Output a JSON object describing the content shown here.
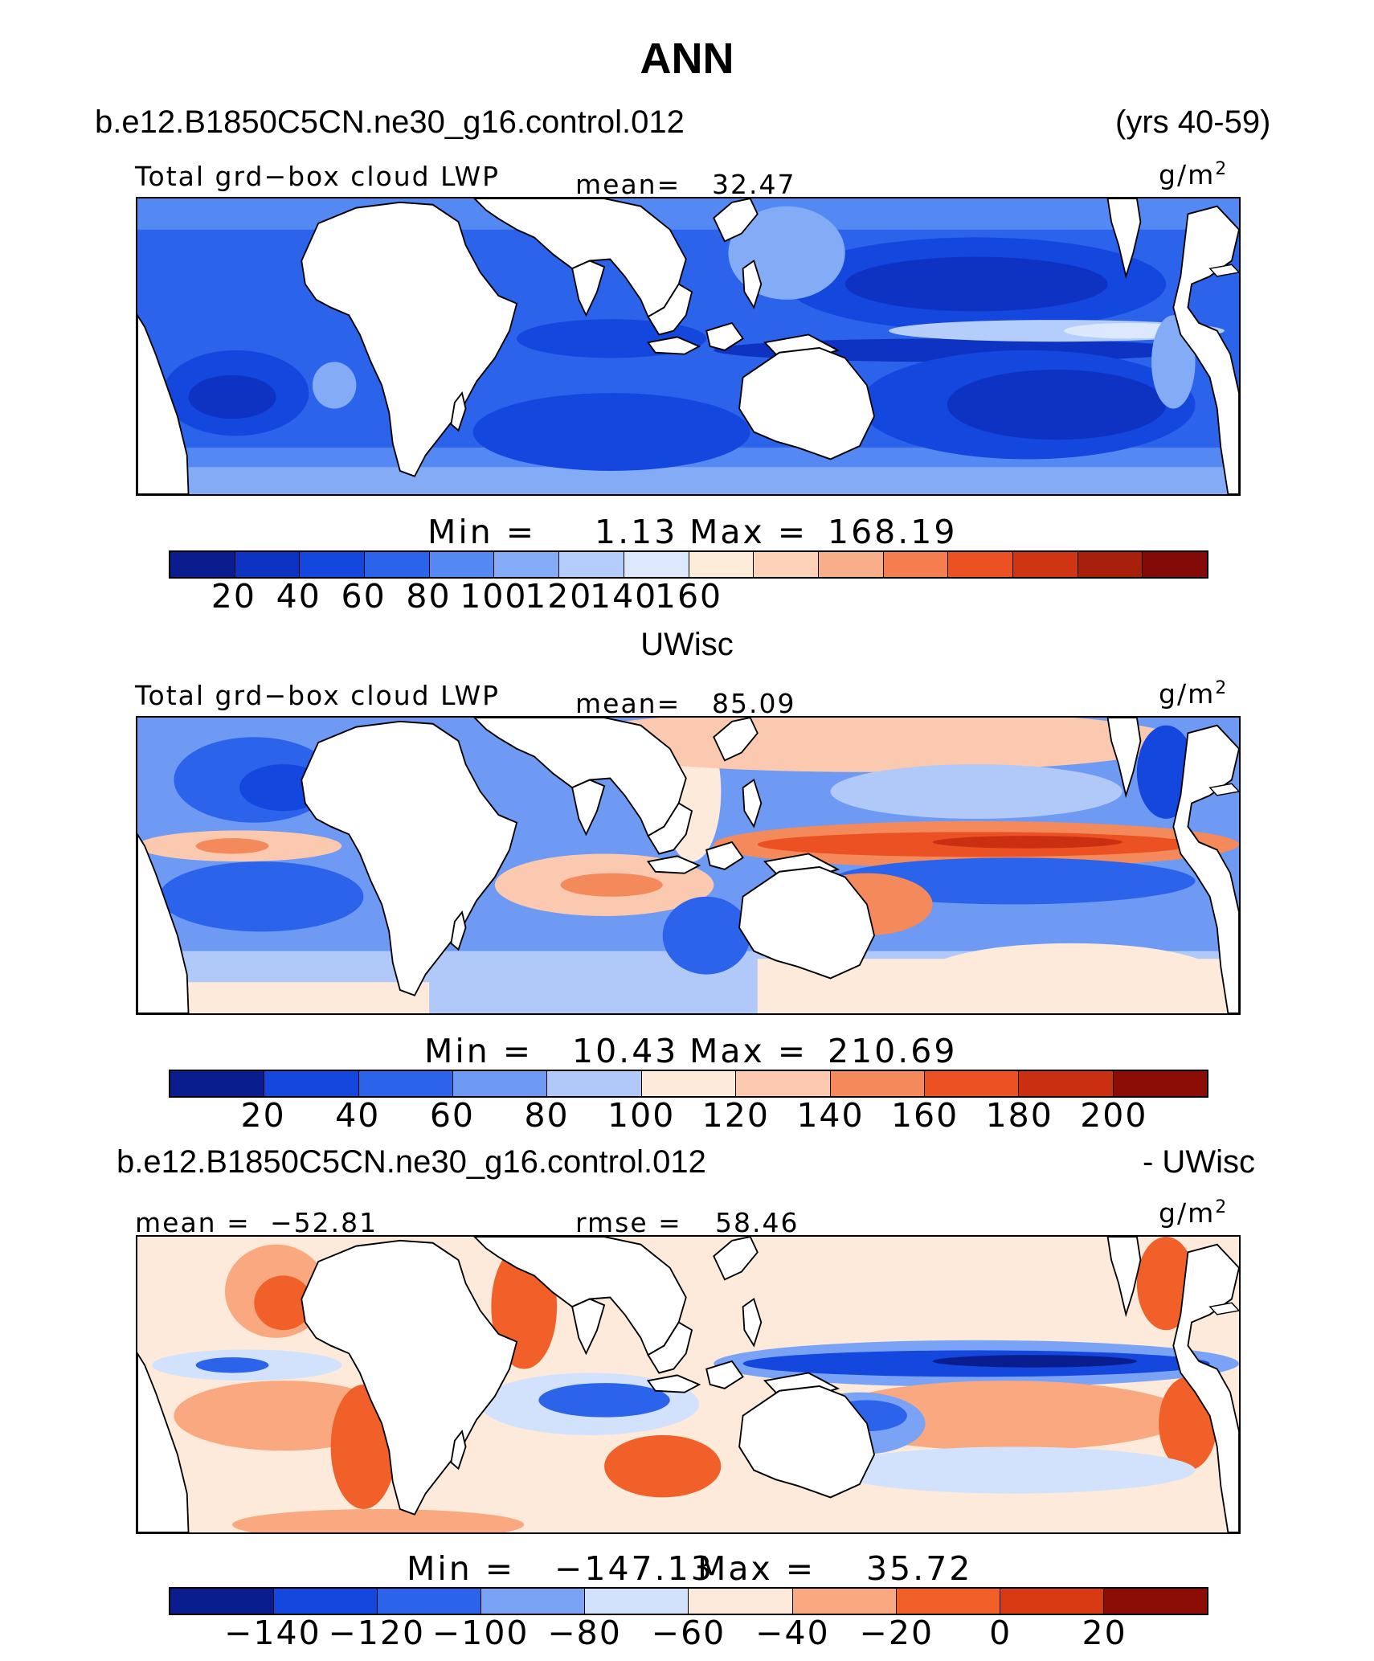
{
  "figure": {
    "title": "ANN",
    "case_name": "b.e12.B1850C5CN.ne30_g16.control.012",
    "years": "(yrs 40-59)"
  },
  "panels": [
    {
      "variable": "Total grd−box cloud LWP",
      "stat_label": "mean=",
      "stat_value": "32.47",
      "units_base": "g/m",
      "units_exp": "2",
      "min_label": "Min =",
      "min_value": "1.13",
      "max_label": "Max =",
      "max_value": "168.19",
      "colors": [
        "#0a1d8f",
        "#0e32c2",
        "#1447dd",
        "#2b63eb",
        "#5488f2",
        "#84acf6",
        "#b5cdfa",
        "#dbe8fd",
        "#feecda",
        "#fcd3b8",
        "#f9ae8b",
        "#f47e50",
        "#ec5124",
        "#cf3512",
        "#a81f0b",
        "#830a06"
      ],
      "ticks": [
        "20",
        "40",
        "60",
        "80",
        "100",
        "120",
        "140",
        "160"
      ]
    },
    {
      "case_label": "UWisc",
      "variable": "Total grd−box cloud LWP",
      "stat_label": "mean=",
      "stat_value": "85.09",
      "units_base": "g/m",
      "units_exp": "2",
      "min_label": "Min =",
      "min_value": "10.43",
      "max_label": "Max =",
      "max_value": "210.69",
      "colors": [
        "#0a1d8f",
        "#1447dd",
        "#2b63eb",
        "#6e9af4",
        "#b0c9f9",
        "#fdeadb",
        "#fac9b0",
        "#f48a5c",
        "#ec5124",
        "#c92f10",
        "#8c0c06"
      ],
      "ticks": [
        "20",
        "40",
        "60",
        "80",
        "100",
        "120",
        "140",
        "160",
        "180",
        "200"
      ]
    },
    {
      "diff_left": "b.e12.B1850C5CN.ne30_g16.control.012",
      "diff_right": "- UWisc",
      "stat_label": "mean =",
      "stat_value": "−52.81",
      "rmse_label": "rmse =",
      "rmse_value": "58.46",
      "units_base": "g/m",
      "units_exp": "2",
      "min_label": "Min =",
      "min_value": "−147.13",
      "max_label": "Max =",
      "max_value": "35.72",
      "colors": [
        "#0a1d8f",
        "#1447dd",
        "#2b63eb",
        "#7aa3f5",
        "#d2e2fc",
        "#fdeadb",
        "#f9a880",
        "#f06028",
        "#d93a14",
        "#8c0c06"
      ],
      "ticks": [
        "−140",
        "−120",
        "−100",
        "−80",
        "−60",
        "−40",
        "−20",
        "0",
        "20"
      ]
    }
  ]
}
